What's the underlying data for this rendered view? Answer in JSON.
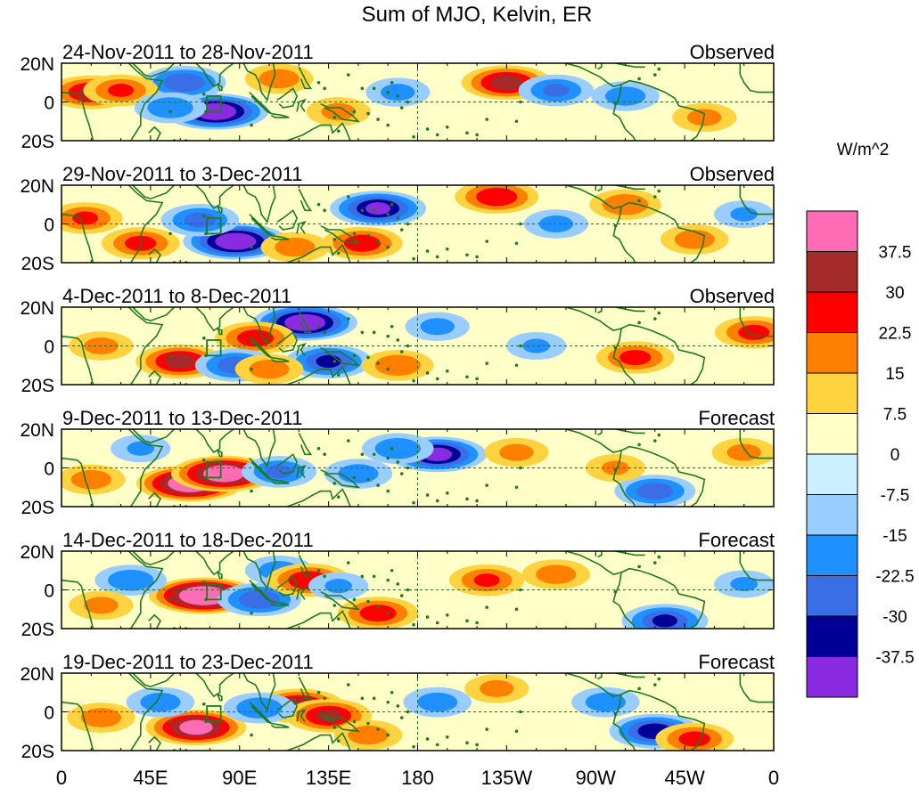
{
  "chart_data": {
    "type": "heatmap",
    "title": "Sum of MJO, Kelvin, ER",
    "x_axis": {
      "ticks": [
        "0",
        "45E",
        "90E",
        "135E",
        "180",
        "135W",
        "90W",
        "45W",
        "0"
      ],
      "values": [
        0,
        45,
        90,
        135,
        180,
        225,
        270,
        315,
        360
      ],
      "range": [
        0,
        360
      ]
    },
    "y_axis": {
      "ticks": [
        "20N",
        "0",
        "20S"
      ],
      "values": [
        20,
        0,
        -20
      ],
      "range": [
        -20,
        20
      ]
    },
    "panels": [
      {
        "dates": "24-Nov-2011 to 28-Nov-2011",
        "status": "Observed",
        "features": [
          {
            "lon": 78,
            "lat": -5,
            "value": -40
          },
          {
            "lon": 62,
            "lat": 10,
            "value": -22
          },
          {
            "lon": 15,
            "lat": 5,
            "value": 24
          },
          {
            "lon": 30,
            "lat": 6,
            "value": 16
          },
          {
            "lon": 55,
            "lat": -3,
            "value": -14
          },
          {
            "lon": 110,
            "lat": 12,
            "value": 12
          },
          {
            "lon": 140,
            "lat": -5,
            "value": 10
          },
          {
            "lon": 225,
            "lat": 10,
            "value": 27
          },
          {
            "lon": 250,
            "lat": 6,
            "value": -16
          },
          {
            "lon": 285,
            "lat": 3,
            "value": -12
          },
          {
            "lon": 170,
            "lat": 5,
            "value": -10
          },
          {
            "lon": 325,
            "lat": -8,
            "value": 10
          }
        ]
      },
      {
        "dates": "29-Nov-2011 to 3-Dec-2011",
        "status": "Observed",
        "features": [
          {
            "lon": 88,
            "lat": -9,
            "value": -40
          },
          {
            "lon": 70,
            "lat": 2,
            "value": -18
          },
          {
            "lon": 12,
            "lat": 3,
            "value": 16
          },
          {
            "lon": 40,
            "lat": -10,
            "value": 18
          },
          {
            "lon": 118,
            "lat": -12,
            "value": 12
          },
          {
            "lon": 152,
            "lat": -10,
            "value": 20
          },
          {
            "lon": 160,
            "lat": 8,
            "value": -32
          },
          {
            "lon": 220,
            "lat": 14,
            "value": 22
          },
          {
            "lon": 250,
            "lat": 0,
            "value": -10
          },
          {
            "lon": 285,
            "lat": 10,
            "value": 14
          },
          {
            "lon": 320,
            "lat": -8,
            "value": 12
          },
          {
            "lon": 345,
            "lat": 5,
            "value": -8
          }
        ]
      },
      {
        "dates": "4-Dec-2011 to 8-Dec-2011",
        "status": "Observed",
        "features": [
          {
            "lon": 123,
            "lat": 12,
            "value": -40
          },
          {
            "lon": 135,
            "lat": -8,
            "value": -24
          },
          {
            "lon": 60,
            "lat": -8,
            "value": 26
          },
          {
            "lon": 98,
            "lat": 4,
            "value": 20
          },
          {
            "lon": 88,
            "lat": -10,
            "value": -20
          },
          {
            "lon": 105,
            "lat": -12,
            "value": 12
          },
          {
            "lon": 170,
            "lat": -10,
            "value": 14
          },
          {
            "lon": 190,
            "lat": 10,
            "value": -10
          },
          {
            "lon": 290,
            "lat": -6,
            "value": 18
          },
          {
            "lon": 350,
            "lat": 7,
            "value": 18
          },
          {
            "lon": 20,
            "lat": 0,
            "value": 10
          },
          {
            "lon": 240,
            "lat": 0,
            "value": -8
          }
        ]
      },
      {
        "dates": "9-Dec-2011 to 13-Dec-2011",
        "status": "Forecast",
        "features": [
          {
            "lon": 65,
            "lat": -8,
            "value": 42
          },
          {
            "lon": 82,
            "lat": -3,
            "value": 40
          },
          {
            "lon": 110,
            "lat": -2,
            "value": -16
          },
          {
            "lon": 150,
            "lat": -3,
            "value": -12
          },
          {
            "lon": 190,
            "lat": 7,
            "value": -34
          },
          {
            "lon": 170,
            "lat": 10,
            "value": -14
          },
          {
            "lon": 15,
            "lat": -6,
            "value": 12
          },
          {
            "lon": 230,
            "lat": 8,
            "value": 10
          },
          {
            "lon": 300,
            "lat": -12,
            "value": -20
          },
          {
            "lon": 280,
            "lat": 0,
            "value": 8
          },
          {
            "lon": 345,
            "lat": 8,
            "value": 10
          },
          {
            "lon": 40,
            "lat": 10,
            "value": -8
          }
        ]
      },
      {
        "dates": "14-Dec-2011 to 18-Dec-2011",
        "status": "Forecast",
        "features": [
          {
            "lon": 72,
            "lat": -3,
            "value": 45
          },
          {
            "lon": 35,
            "lat": 5,
            "value": -14
          },
          {
            "lon": 100,
            "lat": -5,
            "value": -22
          },
          {
            "lon": 110,
            "lat": 10,
            "value": -12
          },
          {
            "lon": 125,
            "lat": 5,
            "value": 22
          },
          {
            "lon": 160,
            "lat": -12,
            "value": 20
          },
          {
            "lon": 140,
            "lat": 2,
            "value": -8
          },
          {
            "lon": 215,
            "lat": 5,
            "value": 16
          },
          {
            "lon": 250,
            "lat": 8,
            "value": 12
          },
          {
            "lon": 305,
            "lat": -16,
            "value": -24
          },
          {
            "lon": 20,
            "lat": -8,
            "value": 10
          },
          {
            "lon": 345,
            "lat": 3,
            "value": -8
          }
        ]
      },
      {
        "dates": "19-Dec-2011 to 23-Dec-2011",
        "status": "Forecast",
        "features": [
          {
            "lon": 68,
            "lat": -8,
            "value": 36
          },
          {
            "lon": 120,
            "lat": 3,
            "value": 28
          },
          {
            "lon": 135,
            "lat": -2,
            "value": 24
          },
          {
            "lon": 100,
            "lat": 2,
            "value": -14
          },
          {
            "lon": 50,
            "lat": 5,
            "value": -12
          },
          {
            "lon": 155,
            "lat": -12,
            "value": 12
          },
          {
            "lon": 190,
            "lat": 5,
            "value": -12
          },
          {
            "lon": 220,
            "lat": 12,
            "value": 10
          },
          {
            "lon": 300,
            "lat": -10,
            "value": -28
          },
          {
            "lon": 275,
            "lat": 5,
            "value": -12
          },
          {
            "lon": 320,
            "lat": -14,
            "value": 18
          },
          {
            "lon": 20,
            "lat": -3,
            "value": 12
          }
        ]
      }
    ],
    "colorbar": {
      "unit": "W/m^2",
      "labels": [
        "37.5",
        "30",
        "22.5",
        "15",
        "7.5",
        "0",
        "-7.5",
        "-15",
        "-22.5",
        "-30",
        "-37.5"
      ],
      "colors": [
        "#ff6bb5",
        "#a52a2a",
        "#ff0000",
        "#ff7f00",
        "#ffd23f",
        "#ffffc8",
        "#ccf0ff",
        "#99ccff",
        "#1e90ff",
        "#3a6ee6",
        "#000096",
        "#8a2be2"
      ],
      "levels": [
        37.5,
        30,
        22.5,
        15,
        7.5,
        0,
        -7.5,
        -15,
        -22.5,
        -30,
        -37.5
      ]
    },
    "grid": false,
    "overlays": {
      "equator_line": "dashed",
      "dateline": "dashed",
      "coastlines": true,
      "coast_color": "#1f7a1f",
      "box_color": "#1f7a1f"
    }
  }
}
